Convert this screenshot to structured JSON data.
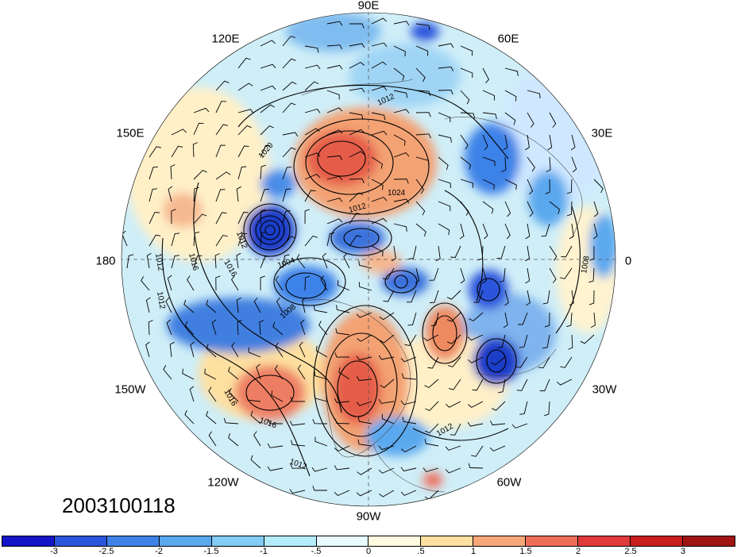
{
  "map": {
    "timestamp": "2003100118",
    "longitude_labels": [
      "90E",
      "120E",
      "60E",
      "150E",
      "30E",
      "180",
      "0",
      "150W",
      "30W",
      "120W",
      "60W",
      "90W"
    ],
    "contour_labels": [
      "1012",
      "1024",
      "1012",
      "1012",
      "1016",
      "1016",
      "1004",
      "1012",
      "1012",
      "1008",
      "1008",
      "1016",
      "1016",
      "1012",
      "1012",
      "1020"
    ]
  },
  "colorbar": {
    "labels": [
      "-3",
      "-2.5",
      "-2",
      "-1.5",
      "-1",
      "-.5",
      "0",
      ".5",
      "1",
      "1.5",
      "2",
      "2.5",
      "3"
    ],
    "colors": [
      "#1414c8",
      "#2a55dc",
      "#3e82e8",
      "#5aa8ee",
      "#82ccf5",
      "#b4ecfa",
      "#e6faff",
      "#fffae0",
      "#fee0a0",
      "#f8a878",
      "#ee6e5a",
      "#e03a3a",
      "#c81e1e",
      "#a01414"
    ]
  }
}
